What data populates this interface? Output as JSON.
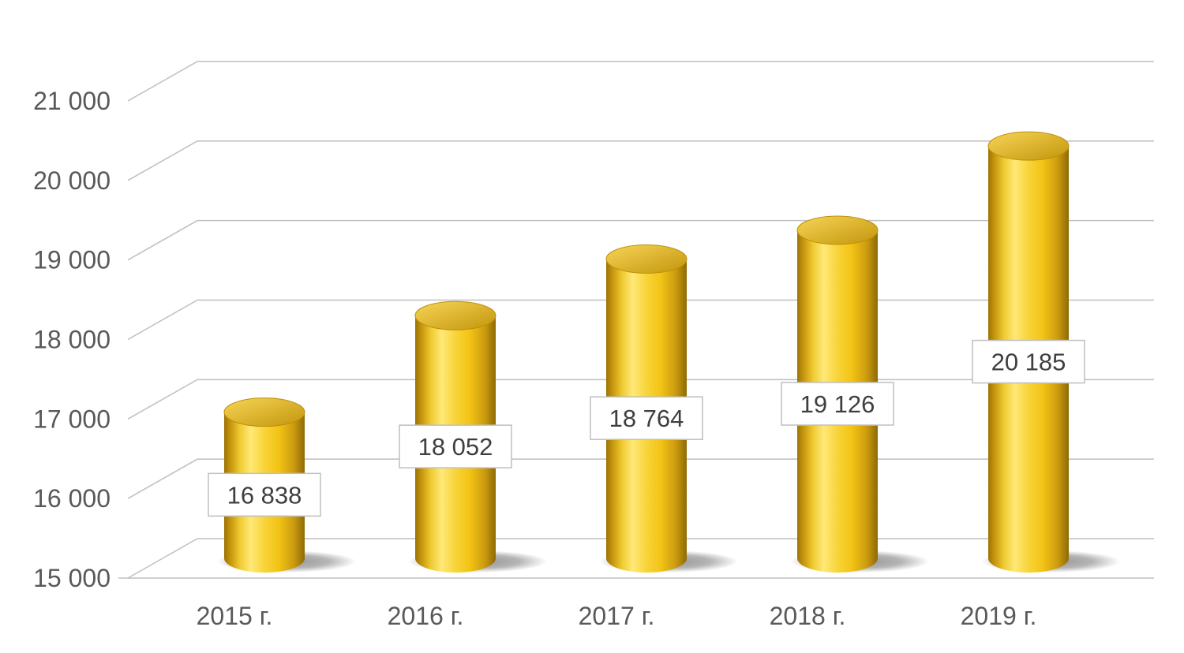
{
  "chart_data": {
    "type": "bar",
    "subtype": "3d-cylinder",
    "title": "",
    "xlabel": "",
    "ylabel": "",
    "categories": [
      "2015 г.",
      "2016 г.",
      "2017 г.",
      "2018 г.",
      "2019 г."
    ],
    "values": [
      16838,
      18052,
      18764,
      19126,
      20185
    ],
    "value_labels": [
      "16 838",
      "18 052",
      "18 764",
      "19 126",
      "20 185"
    ],
    "y_tick_labels": [
      "15 000",
      "16 000",
      "17 000",
      "18 000",
      "19 000",
      "20 000",
      "21 000"
    ],
    "ylim": [
      15000,
      21000
    ],
    "y_step": 1000,
    "grid": true,
    "legend": false,
    "colors": {
      "background": "#FFFFFF",
      "bar_main": "#F2C314",
      "bar_highlight": "#FFE877",
      "bar_dark": "#9C7407",
      "bar_top_light": "#F7D557",
      "bar_top_dark": "#C3950C",
      "gridline": "#BFBFBF",
      "axis_text": "#595959",
      "label_text": "#3F3F3F",
      "label_box_fill": "#FFFFFF",
      "label_box_border": "#BFBFBF",
      "shadow": "#3C3C3C"
    }
  }
}
